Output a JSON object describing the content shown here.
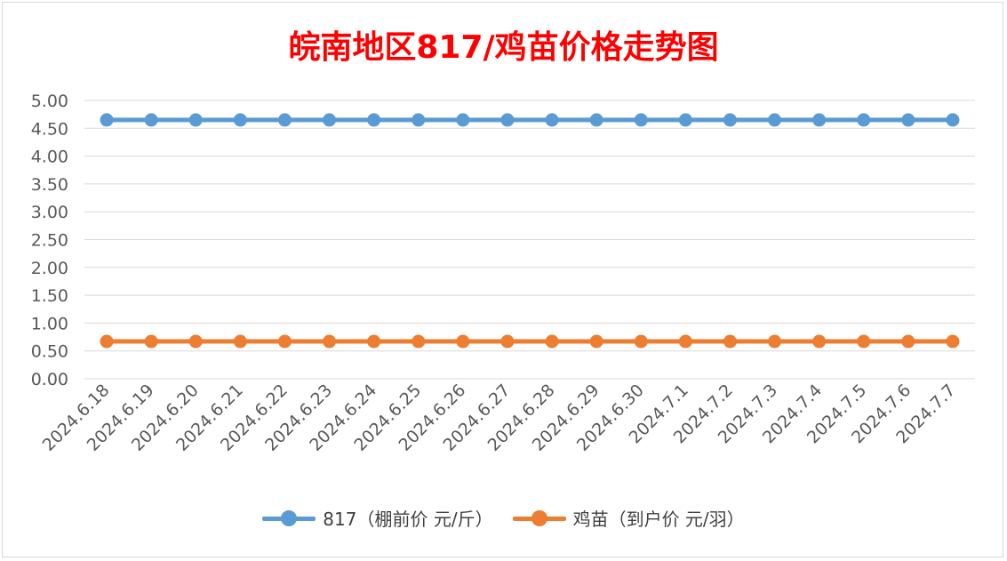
{
  "chart_data": {
    "type": "line",
    "title": "皖南地区817/鸡苗价格走势图",
    "categories": [
      "2024.6.18",
      "2024.6.19",
      "2024.6.20",
      "2024.6.21",
      "2024.6.22",
      "2024.6.23",
      "2024.6.24",
      "2024.6.25",
      "2024.6.26",
      "2024.6.27",
      "2024.6.28",
      "2024.6.29",
      "2024.6.30",
      "2024.7.1",
      "2024.7.2",
      "2024.7.3",
      "2024.7.4",
      "2024.7.5",
      "2024.7.6",
      "2024.7.7"
    ],
    "series": [
      {
        "name": "817（棚前价 元/斤）",
        "color": "#5b9bd5",
        "values": [
          4.65,
          4.65,
          4.65,
          4.65,
          4.65,
          4.65,
          4.65,
          4.65,
          4.65,
          4.65,
          4.65,
          4.65,
          4.65,
          4.65,
          4.65,
          4.65,
          4.65,
          4.65,
          4.65,
          4.65
        ]
      },
      {
        "name": "鸡苗（到户价 元/羽）",
        "color": "#ed7d31",
        "values": [
          0.67,
          0.67,
          0.67,
          0.67,
          0.67,
          0.67,
          0.67,
          0.67,
          0.67,
          0.67,
          0.67,
          0.67,
          0.67,
          0.67,
          0.67,
          0.67,
          0.67,
          0.67,
          0.67,
          0.67
        ]
      }
    ],
    "ylim": [
      0,
      5
    ],
    "yticks": [
      "0.00",
      "0.50",
      "1.00",
      "1.50",
      "2.00",
      "2.50",
      "3.00",
      "3.50",
      "4.00",
      "4.50",
      "5.00"
    ],
    "grid": true,
    "legend_position": "bottom",
    "title_color": "#ff0000"
  }
}
